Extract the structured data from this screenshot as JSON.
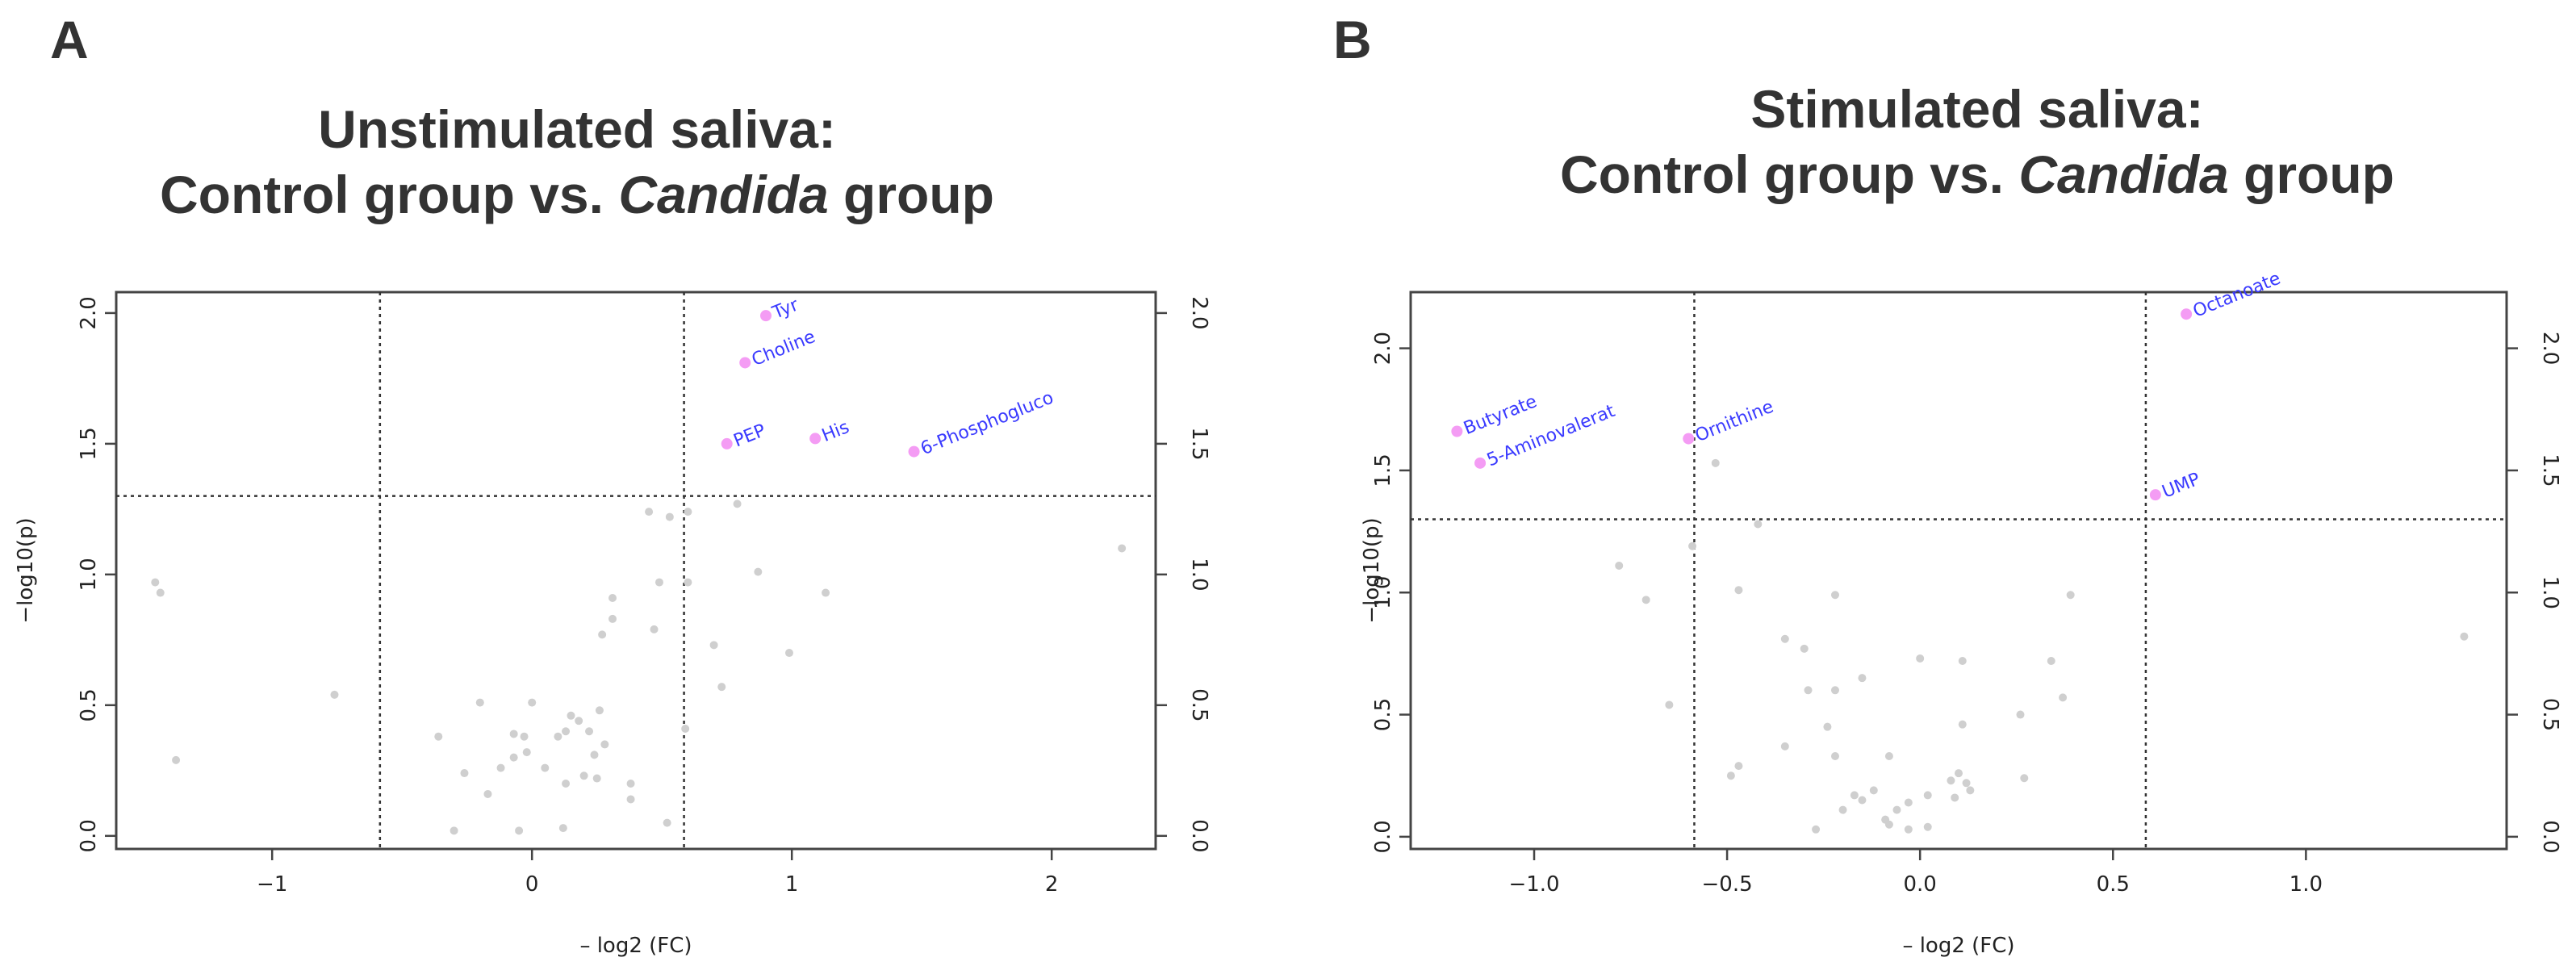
{
  "chart_data": [
    {
      "type": "scatter",
      "panel_letter": "A",
      "title_line1": "Unstimulated saliva:",
      "title_line2_before": "Control group vs. ",
      "title_line2_italic": "Candida",
      "title_line2_after": " group",
      "xlabel": "– log2 (FC)",
      "ylabel": "−log10(p)",
      "xlim": [
        -1.6,
        2.4
      ],
      "ylim": [
        -0.05,
        2.08
      ],
      "xticks": [
        -1,
        0,
        1,
        2
      ],
      "xtick_labels": [
        "−1",
        "0",
        "1",
        "2"
      ],
      "yticks": [
        0.0,
        0.5,
        1.0,
        1.5,
        2.0
      ],
      "ytick_labels": [
        "0.0",
        "0.5",
        "1.0",
        "1.5",
        "2.0"
      ],
      "threshold_x": [
        -0.585,
        0.585
      ],
      "threshold_y": 1.3,
      "significant_points": [
        {
          "label": "Tyr",
          "x": 0.9,
          "y": 1.99
        },
        {
          "label": "Choline",
          "x": 0.82,
          "y": 1.81
        },
        {
          "label": "PEP",
          "x": 0.75,
          "y": 1.5
        },
        {
          "label": "His",
          "x": 1.09,
          "y": 1.52
        },
        {
          "label": "6-Phosphogluco",
          "x": 1.47,
          "y": 1.47
        }
      ],
      "other_points": [
        [
          -1.45,
          0.97
        ],
        [
          -1.43,
          0.93
        ],
        [
          -1.37,
          0.29
        ],
        [
          -0.76,
          0.54
        ],
        [
          2.27,
          1.1
        ],
        [
          0.45,
          1.24
        ],
        [
          0.53,
          1.22
        ],
        [
          0.6,
          1.24
        ],
        [
          0.79,
          1.27
        ],
        [
          0.87,
          1.01
        ],
        [
          1.13,
          0.93
        ],
        [
          0.6,
          0.97
        ],
        [
          0.49,
          0.97
        ],
        [
          0.47,
          0.79
        ],
        [
          0.7,
          0.73
        ],
        [
          0.73,
          0.57
        ],
        [
          0.99,
          0.7
        ],
        [
          0.31,
          0.91
        ],
        [
          0.31,
          0.83
        ],
        [
          0.27,
          0.77
        ],
        [
          -0.36,
          0.38
        ],
        [
          -0.3,
          0.02
        ],
        [
          -0.26,
          0.24
        ],
        [
          -0.2,
          0.51
        ],
        [
          -0.17,
          0.16
        ],
        [
          -0.12,
          0.26
        ],
        [
          -0.07,
          0.3
        ],
        [
          -0.07,
          0.39
        ],
        [
          -0.05,
          0.02
        ],
        [
          -0.03,
          0.38
        ],
        [
          -0.02,
          0.32
        ],
        [
          0.0,
          0.51
        ],
        [
          0.05,
          0.26
        ],
        [
          0.1,
          0.38
        ],
        [
          0.13,
          0.4
        ],
        [
          0.15,
          0.46
        ],
        [
          0.18,
          0.44
        ],
        [
          0.2,
          0.23
        ],
        [
          0.22,
          0.4
        ],
        [
          0.24,
          0.31
        ],
        [
          0.26,
          0.48
        ],
        [
          0.25,
          0.22
        ],
        [
          0.28,
          0.35
        ],
        [
          0.12,
          0.03
        ],
        [
          0.13,
          0.2
        ],
        [
          0.38,
          0.14
        ],
        [
          0.38,
          0.2
        ],
        [
          0.52,
          0.05
        ],
        [
          0.59,
          0.41
        ]
      ]
    },
    {
      "type": "scatter",
      "panel_letter": "B",
      "title_line1": "Stimulated saliva:",
      "title_line2_before": "Control group vs. ",
      "title_line2_italic": "Candida",
      "title_line2_after": " group",
      "xlabel": "– log2 (FC)",
      "ylabel": "−log10(p)",
      "xlim": [
        -1.32,
        1.52
      ],
      "ylim": [
        -0.05,
        2.23
      ],
      "xticks": [
        -1.0,
        -0.5,
        0.0,
        0.5,
        1.0
      ],
      "xtick_labels": [
        "−1.0",
        "−0.5",
        "0.0",
        "0.5",
        "1.0"
      ],
      "yticks": [
        0.0,
        0.5,
        1.0,
        1.5,
        2.0
      ],
      "ytick_labels": [
        "0.0",
        "0.5",
        "1.0",
        "1.5",
        "2.0"
      ],
      "threshold_x": [
        -0.585,
        0.585
      ],
      "threshold_y": 1.3,
      "significant_points": [
        {
          "label": "Octanoate",
          "x": 0.69,
          "y": 2.14
        },
        {
          "label": "Butyrate",
          "x": -1.2,
          "y": 1.66
        },
        {
          "label": "5-Aminovalerat",
          "x": -1.14,
          "y": 1.53
        },
        {
          "label": "Ornithine",
          "x": -0.6,
          "y": 1.63
        },
        {
          "label": "UMP",
          "x": 0.61,
          "y": 1.4
        }
      ],
      "other_points": [
        [
          -0.53,
          1.53
        ],
        [
          -0.59,
          1.19
        ],
        [
          -0.42,
          1.28
        ],
        [
          -0.78,
          1.11
        ],
        [
          -0.71,
          0.97
        ],
        [
          -0.47,
          1.01
        ],
        [
          -0.22,
          0.99
        ],
        [
          0.39,
          0.99
        ],
        [
          -0.35,
          0.81
        ],
        [
          -0.3,
          0.77
        ],
        [
          -0.15,
          0.65
        ],
        [
          0.0,
          0.73
        ],
        [
          0.11,
          0.72
        ],
        [
          0.34,
          0.72
        ],
        [
          -0.29,
          0.6
        ],
        [
          -0.22,
          0.6
        ],
        [
          0.37,
          0.57
        ],
        [
          -0.65,
          0.54
        ],
        [
          -0.24,
          0.45
        ],
        [
          0.26,
          0.5
        ],
        [
          0.11,
          0.46
        ],
        [
          -0.35,
          0.37
        ],
        [
          -0.47,
          0.29
        ],
        [
          -0.49,
          0.25
        ],
        [
          -0.22,
          0.33
        ],
        [
          -0.12,
          0.19
        ],
        [
          -0.17,
          0.17
        ],
        [
          -0.15,
          0.15
        ],
        [
          -0.08,
          0.33
        ],
        [
          -0.06,
          0.11
        ],
        [
          -0.03,
          0.14
        ],
        [
          0.02,
          0.17
        ],
        [
          0.08,
          0.23
        ],
        [
          0.1,
          0.26
        ],
        [
          0.12,
          0.22
        ],
        [
          0.13,
          0.19
        ],
        [
          0.27,
          0.24
        ],
        [
          -0.2,
          0.11
        ],
        [
          -0.09,
          0.07
        ],
        [
          0.09,
          0.16
        ],
        [
          -0.27,
          0.03
        ],
        [
          -0.08,
          0.05
        ],
        [
          -0.03,
          0.03
        ],
        [
          0.02,
          0.04
        ],
        [
          1.41,
          0.82
        ]
      ]
    }
  ]
}
